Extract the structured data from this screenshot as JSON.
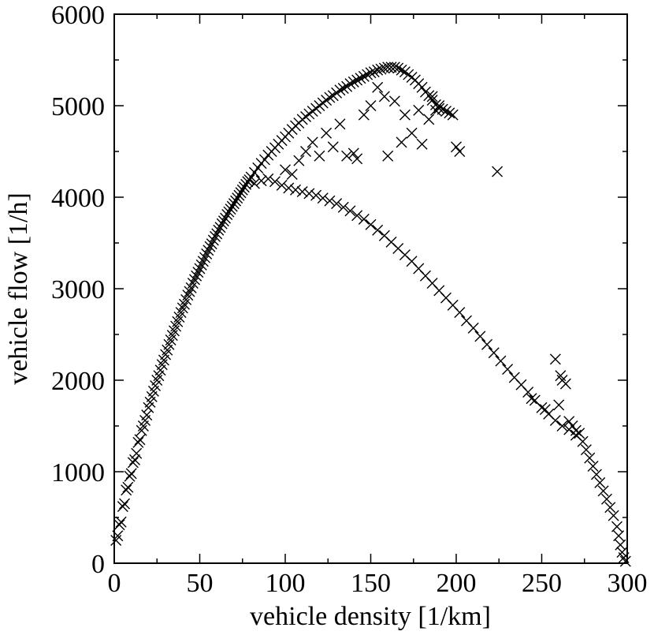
{
  "chart_data": {
    "type": "scatter",
    "xlabel": "vehicle density [1/km]",
    "ylabel": "vehicle flow [1/h]",
    "xlim": [
      0,
      300
    ],
    "ylim": [
      0,
      6000
    ],
    "xticks": [
      0,
      50,
      100,
      150,
      200,
      250,
      300
    ],
    "yticks": [
      0,
      1000,
      2000,
      3000,
      4000,
      5000,
      6000
    ],
    "xtick_labels": [
      "0",
      "50",
      "100",
      "150",
      "200",
      "250",
      "300"
    ],
    "ytick_labels": [
      "0",
      "1000",
      "2000",
      "3000",
      "4000",
      "5000",
      "6000"
    ],
    "grid": false,
    "marker": "x",
    "series": [
      {
        "points": [
          [
            1,
            250
          ],
          [
            2,
            300
          ],
          [
            3,
            420
          ],
          [
            4,
            450
          ],
          [
            5,
            620
          ],
          [
            6,
            650
          ],
          [
            7,
            800
          ],
          [
            8,
            830
          ],
          [
            9,
            950
          ],
          [
            10,
            980
          ],
          [
            11,
            1100
          ],
          [
            12,
            1130
          ],
          [
            13,
            1200
          ],
          [
            14,
            1320
          ],
          [
            15,
            1350
          ],
          [
            16,
            1450
          ],
          [
            17,
            1500
          ],
          [
            18,
            1560
          ],
          [
            19,
            1620
          ],
          [
            20,
            1700
          ],
          [
            21,
            1760
          ],
          [
            22,
            1820
          ],
          [
            23,
            1880
          ],
          [
            24,
            1940
          ],
          [
            25,
            2000
          ],
          [
            26,
            2050
          ],
          [
            27,
            2110
          ],
          [
            28,
            2170
          ],
          [
            29,
            2220
          ],
          [
            30,
            2280
          ],
          [
            31,
            2330
          ],
          [
            32,
            2390
          ],
          [
            33,
            2440
          ],
          [
            34,
            2490
          ],
          [
            35,
            2540
          ],
          [
            36,
            2590
          ],
          [
            37,
            2640
          ],
          [
            38,
            2690
          ],
          [
            39,
            2740
          ],
          [
            40,
            2790
          ],
          [
            41,
            2830
          ],
          [
            42,
            2880
          ],
          [
            43,
            2930
          ],
          [
            44,
            2970
          ],
          [
            45,
            3010
          ],
          [
            46,
            3060
          ],
          [
            47,
            3100
          ],
          [
            48,
            3140
          ],
          [
            49,
            3180
          ],
          [
            50,
            3220
          ],
          [
            51,
            3260
          ],
          [
            52,
            3300
          ],
          [
            53,
            3340
          ],
          [
            54,
            3380
          ],
          [
            55,
            3420
          ],
          [
            56,
            3460
          ],
          [
            57,
            3490
          ],
          [
            58,
            3530
          ],
          [
            59,
            3570
          ],
          [
            60,
            3600
          ],
          [
            61,
            3640
          ],
          [
            62,
            3670
          ],
          [
            63,
            3710
          ],
          [
            64,
            3740
          ],
          [
            65,
            3770
          ],
          [
            66,
            3810
          ],
          [
            67,
            3840
          ],
          [
            68,
            3870
          ],
          [
            69,
            3900
          ],
          [
            70,
            3930
          ],
          [
            71,
            3960
          ],
          [
            72,
            3990
          ],
          [
            73,
            4020
          ],
          [
            74,
            4050
          ],
          [
            75,
            4080
          ],
          [
            76,
            4110
          ],
          [
            77,
            4140
          ],
          [
            78,
            4170
          ],
          [
            79,
            4190
          ],
          [
            80,
            4220
          ],
          [
            82,
            4270
          ],
          [
            84,
            4320
          ],
          [
            86,
            4370
          ],
          [
            88,
            4410
          ],
          [
            90,
            4460
          ],
          [
            92,
            4500
          ],
          [
            94,
            4540
          ],
          [
            96,
            4580
          ],
          [
            98,
            4620
          ],
          [
            100,
            4660
          ],
          [
            102,
            4700
          ],
          [
            104,
            4740
          ],
          [
            106,
            4780
          ],
          [
            108,
            4810
          ],
          [
            110,
            4850
          ],
          [
            112,
            4880
          ],
          [
            114,
            4910
          ],
          [
            116,
            4940
          ],
          [
            118,
            4970
          ],
          [
            120,
            5000
          ],
          [
            122,
            5030
          ],
          [
            124,
            5060
          ],
          [
            126,
            5090
          ],
          [
            128,
            5110
          ],
          [
            130,
            5140
          ],
          [
            132,
            5170
          ],
          [
            134,
            5190
          ],
          [
            136,
            5210
          ],
          [
            138,
            5240
          ],
          [
            140,
            5260
          ],
          [
            142,
            5280
          ],
          [
            144,
            5300
          ],
          [
            146,
            5320
          ],
          [
            148,
            5340
          ],
          [
            150,
            5360
          ],
          [
            152,
            5370
          ],
          [
            154,
            5390
          ],
          [
            156,
            5400
          ],
          [
            158,
            5410
          ],
          [
            160,
            5420
          ],
          [
            162,
            5420
          ],
          [
            164,
            5420
          ],
          [
            166,
            5410
          ],
          [
            168,
            5390
          ],
          [
            170,
            5370
          ],
          [
            172,
            5340
          ],
          [
            174,
            5310
          ],
          [
            176,
            5280
          ],
          [
            178,
            5240
          ],
          [
            180,
            5200
          ],
          [
            182,
            5150
          ],
          [
            184,
            5110
          ],
          [
            186,
            5060
          ],
          [
            188,
            5010
          ],
          [
            190,
            4970
          ],
          [
            192,
            4960
          ],
          [
            194,
            4940
          ],
          [
            196,
            4920
          ],
          [
            198,
            4900
          ],
          [
            82,
            4150
          ],
          [
            86,
            4180
          ],
          [
            90,
            4200
          ],
          [
            94,
            4170
          ],
          [
            98,
            4130
          ],
          [
            102,
            4100
          ],
          [
            106,
            4080
          ],
          [
            110,
            4060
          ],
          [
            114,
            4040
          ],
          [
            118,
            4020
          ],
          [
            122,
            3990
          ],
          [
            126,
            3960
          ],
          [
            130,
            3930
          ],
          [
            134,
            3890
          ],
          [
            138,
            3850
          ],
          [
            142,
            3800
          ],
          [
            146,
            3760
          ],
          [
            150,
            3700
          ],
          [
            154,
            3640
          ],
          [
            158,
            3580
          ],
          [
            162,
            3510
          ],
          [
            166,
            3440
          ],
          [
            170,
            3370
          ],
          [
            174,
            3300
          ],
          [
            178,
            3220
          ],
          [
            182,
            3140
          ],
          [
            186,
            3060
          ],
          [
            190,
            2980
          ],
          [
            194,
            2900
          ],
          [
            198,
            2820
          ],
          [
            202,
            2740
          ],
          [
            206,
            2650
          ],
          [
            210,
            2570
          ],
          [
            214,
            2480
          ],
          [
            218,
            2390
          ],
          [
            222,
            2300
          ],
          [
            226,
            2210
          ],
          [
            230,
            2120
          ],
          [
            234,
            2030
          ],
          [
            238,
            1950
          ],
          [
            242,
            1870
          ],
          [
            246,
            1780
          ],
          [
            250,
            1700
          ],
          [
            254,
            1630
          ],
          [
            258,
            1560
          ],
          [
            262,
            1500
          ],
          [
            266,
            1460
          ],
          [
            270,
            1450
          ],
          [
            272,
            1420
          ],
          [
            274,
            1330
          ],
          [
            276,
            1240
          ],
          [
            278,
            1150
          ],
          [
            280,
            1060
          ],
          [
            282,
            970
          ],
          [
            284,
            880
          ],
          [
            286,
            790
          ],
          [
            288,
            700
          ],
          [
            290,
            610
          ],
          [
            292,
            520
          ],
          [
            294,
            400
          ],
          [
            295,
            300
          ],
          [
            296,
            200
          ],
          [
            297,
            120
          ],
          [
            298,
            60
          ],
          [
            299,
            20
          ],
          [
            100,
            4300
          ],
          [
            104,
            4250
          ],
          [
            108,
            4400
          ],
          [
            112,
            4500
          ],
          [
            116,
            4600
          ],
          [
            120,
            4450
          ],
          [
            124,
            4700
          ],
          [
            128,
            4550
          ],
          [
            132,
            4800
          ],
          [
            136,
            4450
          ],
          [
            140,
            4480
          ],
          [
            142,
            4420
          ],
          [
            146,
            4900
          ],
          [
            150,
            5000
          ],
          [
            154,
            5200
          ],
          [
            158,
            5100
          ],
          [
            160,
            4450
          ],
          [
            164,
            5050
          ],
          [
            168,
            4600
          ],
          [
            170,
            4900
          ],
          [
            174,
            4700
          ],
          [
            178,
            4950
          ],
          [
            180,
            4580
          ],
          [
            184,
            4850
          ],
          [
            186,
            5100
          ],
          [
            188,
            4950
          ],
          [
            190,
            5000
          ],
          [
            200,
            4550
          ],
          [
            202,
            4500
          ],
          [
            224,
            4280
          ],
          [
            258,
            2230
          ],
          [
            260,
            1730
          ],
          [
            261,
            2050
          ],
          [
            262,
            2000
          ],
          [
            264,
            1960
          ],
          [
            244,
            1800
          ],
          [
            252,
            1680
          ],
          [
            266,
            1550
          ],
          [
            268,
            1500
          ],
          [
            270,
            1400
          ]
        ]
      }
    ]
  }
}
